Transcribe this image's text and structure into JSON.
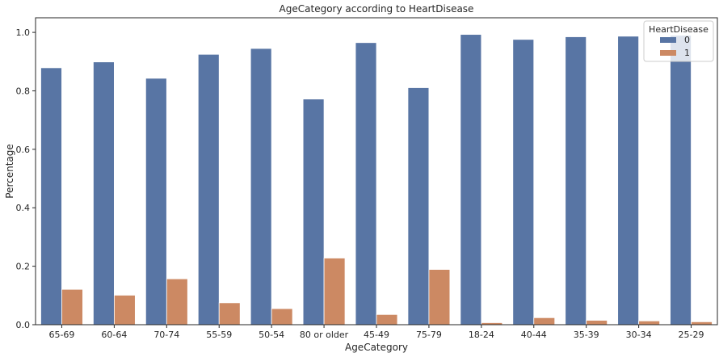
{
  "chart_data": {
    "type": "bar",
    "title": "AgeCategory according to HeartDisease",
    "xlabel": "AgeCategory",
    "ylabel": "Percentage",
    "ylim": [
      0,
      1.05
    ],
    "yticks": [
      "0.0",
      "0.2",
      "0.4",
      "0.6",
      "0.8",
      "1.0"
    ],
    "ytick_values": [
      0,
      0.2,
      0.4,
      0.6,
      0.8,
      1.0
    ],
    "grid": false,
    "legend": {
      "title": "HeartDisease",
      "placement": "top-right"
    },
    "categories": [
      "65-69",
      "60-64",
      "70-74",
      "55-59",
      "50-54",
      "80 or older",
      "45-49",
      "75-79",
      "18-24",
      "40-44",
      "35-39",
      "30-34",
      "25-29"
    ],
    "series": [
      {
        "name": "0",
        "color": "#5875a4",
        "values": [
          0.879,
          0.899,
          0.843,
          0.925,
          0.945,
          0.772,
          0.965,
          0.811,
          0.993,
          0.976,
          0.985,
          0.987,
          0.99
        ]
      },
      {
        "name": "1",
        "color": "#cc8963",
        "values": [
          0.121,
          0.101,
          0.157,
          0.075,
          0.055,
          0.228,
          0.035,
          0.189,
          0.007,
          0.024,
          0.015,
          0.013,
          0.01
        ]
      }
    ]
  }
}
